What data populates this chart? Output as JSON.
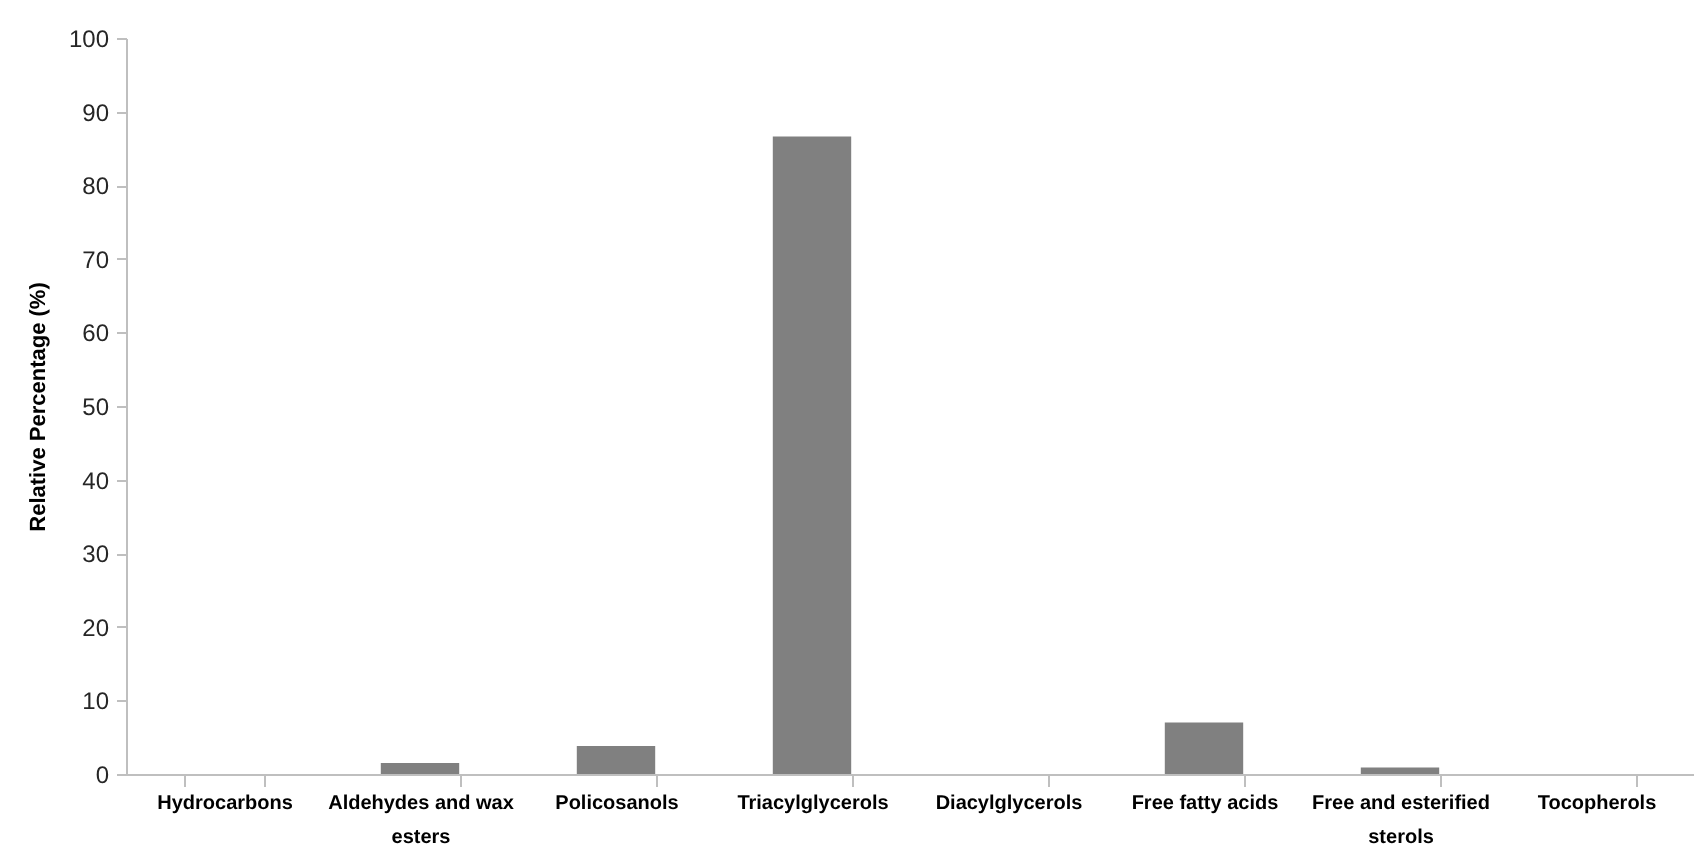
{
  "chart_data": {
    "type": "bar",
    "ylabel": "Relative Percentage (%)",
    "categories": [
      "Hydrocarbons",
      "Aldehydes and wax esters",
      "Policosanols",
      "Triacylglycerols",
      "Diacylglycerols",
      "Free fatty acids",
      "Free and esterified sterols",
      "Tocopherols"
    ],
    "values": [
      0,
      1.5,
      3.8,
      86.6,
      0,
      7,
      0.9,
      0
    ],
    "color": "#808080",
    "ylim": [
      0,
      100
    ],
    "yticks": [
      0,
      10,
      20,
      30,
      40,
      50,
      60,
      70,
      80,
      90,
      100
    ],
    "grid": false
  }
}
